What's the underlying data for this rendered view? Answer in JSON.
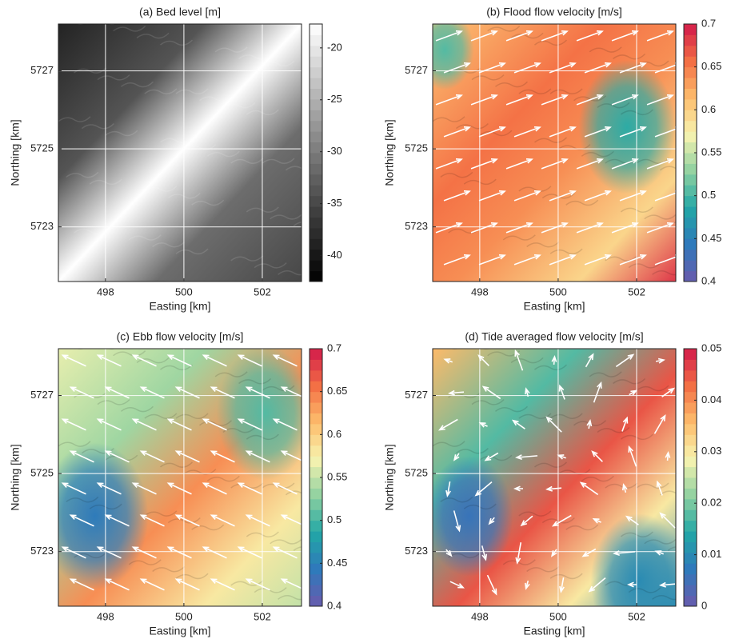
{
  "chart_data": [
    {
      "type": "heatmap",
      "title": "(a) Bed level [m]",
      "xlabel": "Easting [km]",
      "ylabel": "Northing [km]",
      "xlim": [
        496.8,
        503
      ],
      "xticks": [
        498,
        500,
        502
      ],
      "ylim": [
        5721.6,
        5728.2
      ],
      "yticks": [
        5723,
        5725,
        5727
      ],
      "clim": [
        -42.5,
        -17.7
      ],
      "cticks": [
        -40,
        -35,
        -30,
        -25,
        -20
      ],
      "colormap": [
        "#000000",
        "#3a3a3a",
        "#7a7a7a",
        "#bdbdbd",
        "#ffffff"
      ],
      "grid": true
    },
    {
      "type": "heatmap",
      "title": "(b) Flood flow velocity [m/s]",
      "xlabel": "Easting [km]",
      "ylabel": "Northing [km]",
      "xlim": [
        496.8,
        503
      ],
      "xticks": [
        498,
        500,
        502
      ],
      "ylim": [
        5721.6,
        5728.2
      ],
      "yticks": [
        5723,
        5725,
        5727
      ],
      "clim": [
        0.4,
        0.7
      ],
      "cticks": [
        0.4,
        0.45,
        0.5,
        0.55,
        0.6,
        0.65,
        0.7
      ],
      "colormap": [
        "#6a5aad",
        "#2f79bb",
        "#22a7a6",
        "#8fd1a0",
        "#f7f3b0",
        "#fdbd6c",
        "#f36e44",
        "#d21a4b"
      ],
      "grid": true
    },
    {
      "type": "heatmap",
      "title": "(c) Ebb flow velocity [m/s]",
      "xlabel": "Easting [km]",
      "ylabel": "Northing [km]",
      "xlim": [
        496.8,
        503
      ],
      "xticks": [
        498,
        500,
        502
      ],
      "ylim": [
        5721.6,
        5728.2
      ],
      "yticks": [
        5723,
        5725,
        5727
      ],
      "clim": [
        0.4,
        0.7
      ],
      "cticks": [
        0.4,
        0.45,
        0.5,
        0.55,
        0.6,
        0.65,
        0.7
      ],
      "colormap": [
        "#6a5aad",
        "#2f79bb",
        "#22a7a6",
        "#8fd1a0",
        "#f7f3b0",
        "#fdbd6c",
        "#f36e44",
        "#d21a4b"
      ],
      "grid": true
    },
    {
      "type": "heatmap",
      "title": "(d) Tide averaged flow velocity [m/s]",
      "xlabel": "Easting [km]",
      "ylabel": "Northing [km]",
      "xlim": [
        496.8,
        503
      ],
      "xticks": [
        498,
        500,
        502
      ],
      "ylim": [
        5721.6,
        5728.2
      ],
      "yticks": [
        5723,
        5725,
        5727
      ],
      "clim": [
        0,
        0.05
      ],
      "cticks": [
        0,
        0.01,
        0.02,
        0.03,
        0.04,
        0.05
      ],
      "colormap": [
        "#6a5aad",
        "#2f79bb",
        "#22a7a6",
        "#8fd1a0",
        "#f7f3b0",
        "#fdbd6c",
        "#f36e44",
        "#d21a4b"
      ],
      "grid": true
    }
  ]
}
